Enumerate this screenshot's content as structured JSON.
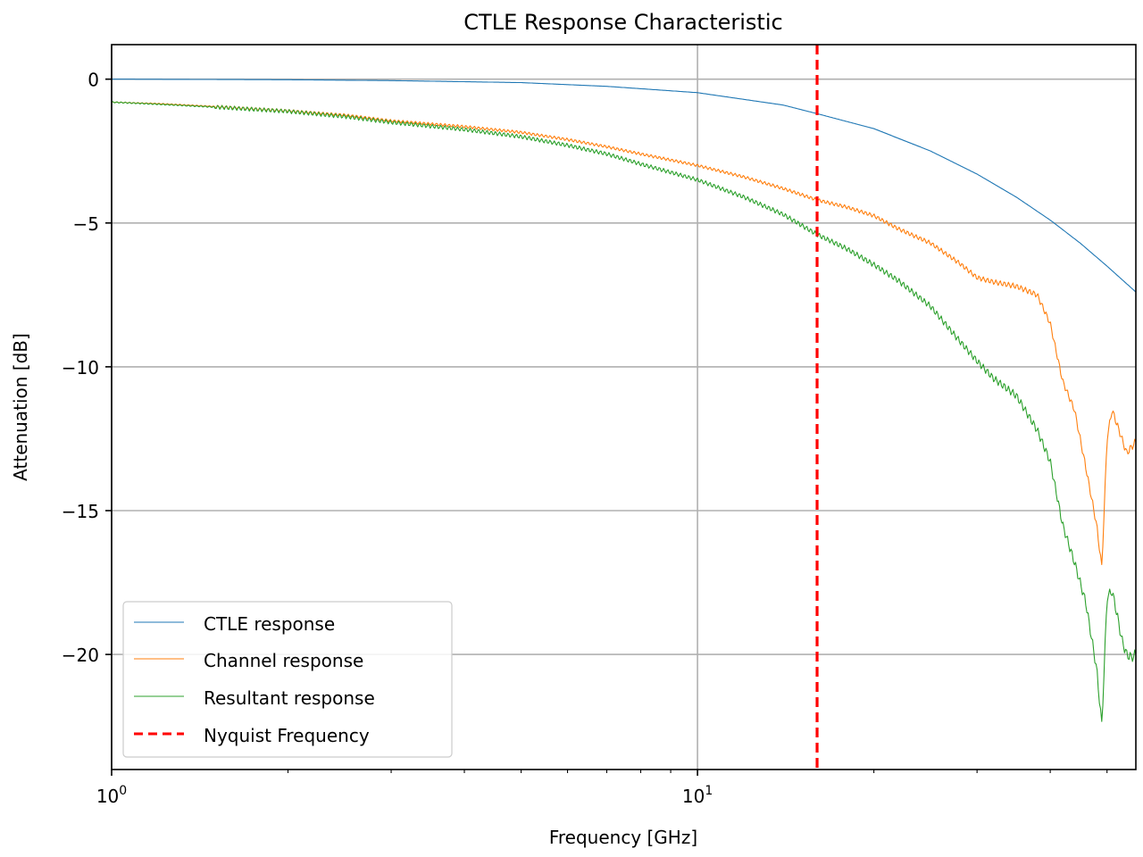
{
  "chart_data": {
    "type": "line",
    "title": "CTLE Response Characteristic",
    "xlabel": "Frequency [GHz]",
    "ylabel": "Attenuation [dB]",
    "xscale": "log",
    "xlim": [
      1,
      56
    ],
    "ylim": [
      -24,
      1.2
    ],
    "grid": true,
    "legend_position": "lower-left",
    "xticks": [
      {
        "value": 1,
        "base": "10",
        "exp": "0"
      },
      {
        "value": 10,
        "base": "10",
        "exp": "1"
      }
    ],
    "yticks": [
      {
        "value": 0,
        "label": "0"
      },
      {
        "value": -5,
        "label": "−5"
      },
      {
        "value": -10,
        "label": "−10"
      },
      {
        "value": -15,
        "label": "−15"
      },
      {
        "value": -20,
        "label": "−20"
      }
    ],
    "nyquist": {
      "name": "Nyquist Frequency",
      "x": 16,
      "color": "#ff0000",
      "style": "dashed"
    },
    "series": [
      {
        "name": "CTLE response",
        "color": "#1f77b4",
        "x": [
          1,
          2,
          3,
          5,
          7,
          10,
          14,
          16,
          20,
          25,
          30,
          35,
          40,
          45,
          50,
          56
        ],
        "y": [
          0,
          -0.02,
          -0.05,
          -0.12,
          -0.25,
          -0.47,
          -0.9,
          -1.2,
          -1.72,
          -2.5,
          -3.3,
          -4.1,
          -4.9,
          -5.7,
          -6.5,
          -7.4
        ]
      },
      {
        "name": "Channel response",
        "color": "#ff7f0e",
        "x": [
          1,
          1.2,
          1.5,
          2,
          2.5,
          3,
          4,
          5,
          6,
          7,
          8,
          10,
          12,
          14,
          16,
          18,
          20,
          22,
          25,
          28,
          30,
          32,
          35,
          38,
          40,
          42,
          44,
          46,
          48,
          49,
          50,
          51,
          52,
          53,
          54,
          55,
          56
        ],
        "y": [
          -0.8,
          -0.85,
          -0.95,
          -1.1,
          -1.25,
          -1.45,
          -1.65,
          -1.85,
          -2.1,
          -2.35,
          -2.6,
          -3.0,
          -3.4,
          -3.8,
          -4.2,
          -4.45,
          -4.75,
          -5.2,
          -5.7,
          -6.4,
          -6.9,
          -7.05,
          -7.2,
          -7.5,
          -8.5,
          -10.5,
          -11.5,
          -13.5,
          -15.5,
          -17.0,
          -12.5,
          -11.5,
          -12.0,
          -12.5,
          -13.0,
          -12.8,
          -12.6
        ]
      },
      {
        "name": "Resultant response",
        "color": "#2ca02c",
        "x": [
          1,
          1.2,
          1.5,
          2,
          2.5,
          3,
          4,
          5,
          6,
          7,
          8,
          10,
          12,
          14,
          16,
          18,
          20,
          22,
          25,
          28,
          30,
          32,
          35,
          38,
          40,
          42,
          44,
          46,
          48,
          49,
          50,
          51,
          52,
          53,
          54,
          55,
          56
        ],
        "y": [
          -0.8,
          -0.87,
          -0.97,
          -1.12,
          -1.3,
          -1.5,
          -1.75,
          -2.0,
          -2.3,
          -2.6,
          -2.95,
          -3.5,
          -4.1,
          -4.7,
          -5.4,
          -5.9,
          -6.45,
          -7.0,
          -7.9,
          -9.1,
          -9.8,
          -10.4,
          -11.0,
          -12.2,
          -13.3,
          -15.5,
          -16.8,
          -18.2,
          -20.5,
          -22.5,
          -18.0,
          -17.8,
          -18.6,
          -19.5,
          -20.0,
          -20.1,
          -20.0
        ]
      }
    ]
  }
}
